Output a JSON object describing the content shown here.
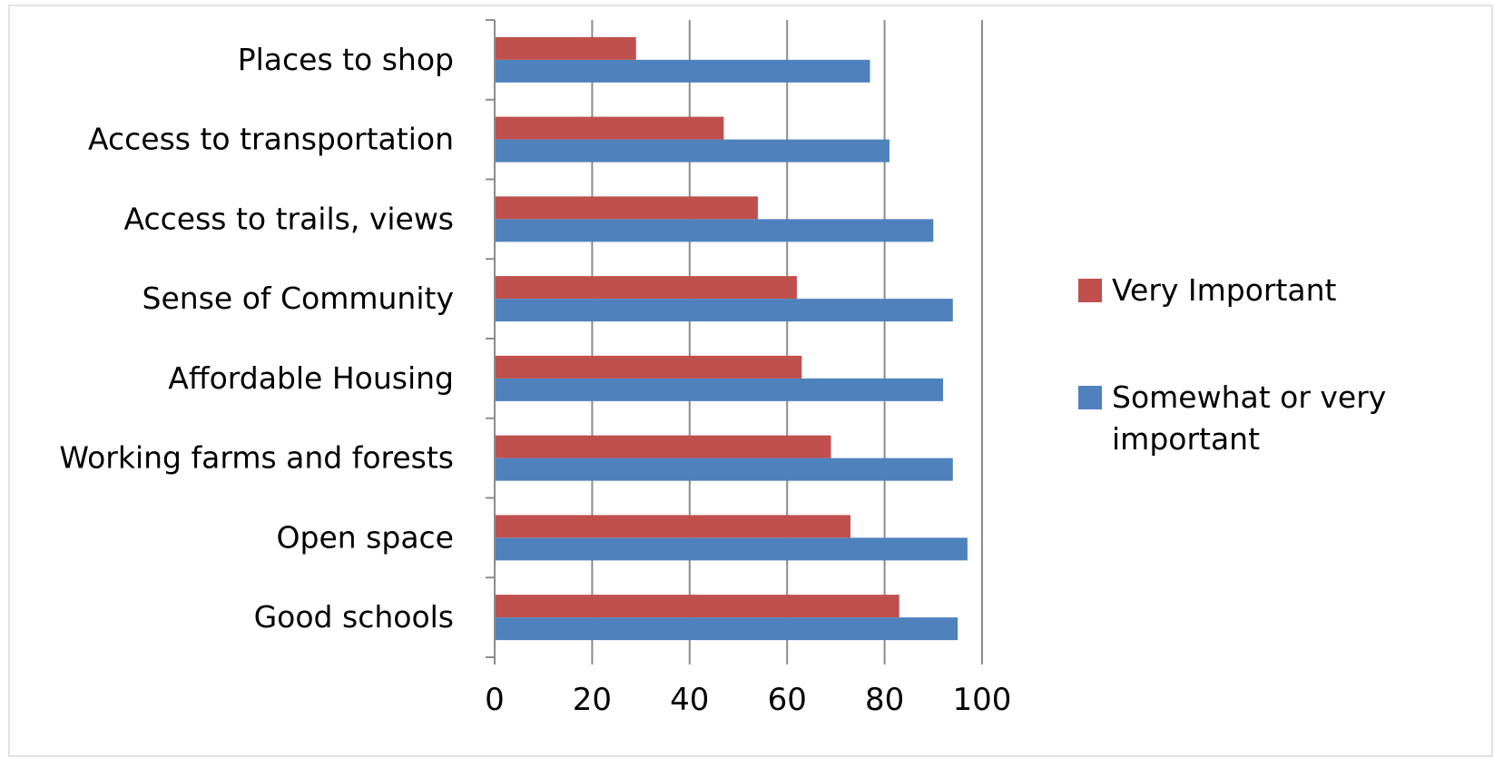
{
  "chart_data": {
    "type": "bar",
    "orientation": "horizontal",
    "categories": [
      "Places to shop",
      "Access to transportation",
      "Access to trails, views",
      "Sense of Community",
      "Affordable Housing",
      "Working farms and forests",
      "Open space",
      "Good schools"
    ],
    "series": [
      {
        "name": "Very Important",
        "color": "#c0504d",
        "values": [
          29,
          47,
          54,
          62,
          63,
          69,
          73,
          83
        ]
      },
      {
        "name": "Somewhat or very important",
        "color": "#4f81bd",
        "values": [
          77,
          81,
          90,
          94,
          92,
          94,
          97,
          95
        ]
      }
    ],
    "xlim": [
      0,
      100
    ],
    "xticks": [
      "0",
      "20",
      "40",
      "60",
      "80",
      "100"
    ],
    "legend": {
      "position": "right",
      "items": [
        "Very Important",
        "Somewhat or very important"
      ]
    },
    "grid": true
  }
}
